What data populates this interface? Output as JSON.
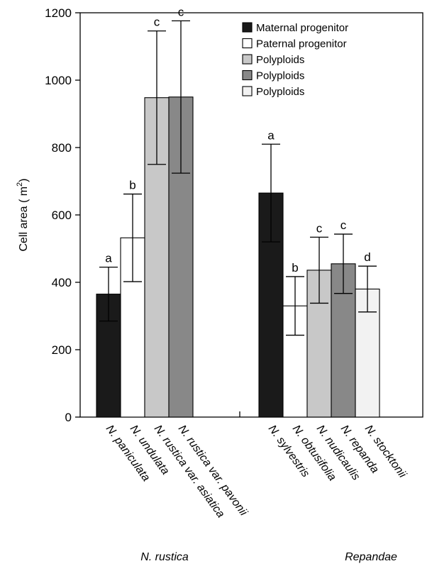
{
  "chart_data": {
    "type": "bar",
    "ylabel": "Cell area ( m",
    "ylabel_superscript": "2",
    "ylabel_close": ")",
    "ylim": [
      0,
      1200
    ],
    "yticks": [
      0,
      200,
      400,
      600,
      800,
      1000,
      1200
    ],
    "grid": false,
    "legend_position": "top-right",
    "legend": [
      {
        "label": "Maternal progenitor",
        "color": "#1a1a1a"
      },
      {
        "label": "Paternal progenitor",
        "color": "#ffffff"
      },
      {
        "label": "Polyploids",
        "color": "#c8c8c8"
      },
      {
        "label": "Polyploids",
        "color": "#888888"
      },
      {
        "label": "Polyploids",
        "color": "#f2f2f2"
      }
    ],
    "groups": [
      {
        "name": "N. rustica",
        "bars": [
          {
            "category": "N. paniculata",
            "value": 365,
            "error": 80,
            "sig": "a",
            "color": "#1a1a1a"
          },
          {
            "category": "N. undulata",
            "value": 532,
            "error": 130,
            "sig": "b",
            "color": "#ffffff"
          },
          {
            "category": "N. rustica var. asiatica",
            "value": 948,
            "error": 198,
            "sig": "c",
            "color": "#c8c8c8"
          },
          {
            "category": "N. rustica var. pavonii",
            "value": 950,
            "error": 226,
            "sig": "c",
            "color": "#888888"
          }
        ]
      },
      {
        "name": "Repandae",
        "bars": [
          {
            "category": "N. sylvestris",
            "value": 665,
            "error": 145,
            "sig": "a",
            "color": "#1a1a1a"
          },
          {
            "category": "N. obtusifolia",
            "value": 330,
            "error": 87,
            "sig": "b",
            "color": "#ffffff"
          },
          {
            "category": "N. nudicaulis",
            "value": 436,
            "error": 98,
            "sig": "c",
            "color": "#c8c8c8"
          },
          {
            "category": "N. repanda",
            "value": 455,
            "error": 88,
            "sig": "c",
            "color": "#888888"
          },
          {
            "category": "N. stocktonii",
            "value": 380,
            "error": 68,
            "sig": "d",
            "color": "#f2f2f2"
          }
        ]
      }
    ]
  }
}
